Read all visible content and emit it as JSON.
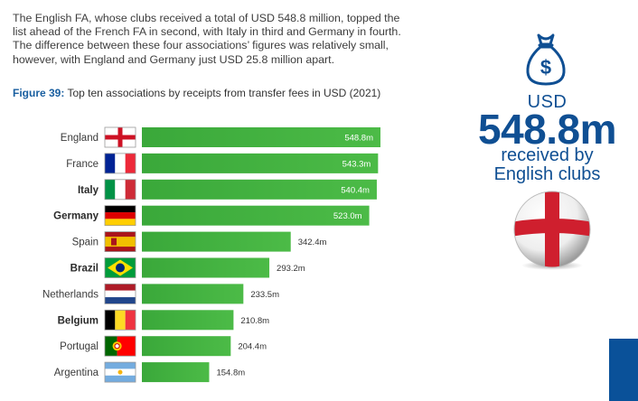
{
  "intro_text": "The English FA, whose clubs received a total of USD 548.8 million, topped the list ahead of the French FA in second, with Italy in third and Germany in fourth. The difference between these four associations’ figures was relatively small, however, with England and Germany just USD 25.8 million apart.",
  "figure": {
    "label": "Figure 39:",
    "caption": "Top ten associations by receipts from transfer fees in USD (2021)"
  },
  "stat": {
    "currency": "USD",
    "value": "548.8m",
    "line1": "received by",
    "line2": "English clubs"
  },
  "icons": {
    "money_bag": "money-bag-icon",
    "ball": "england-flag-ball"
  },
  "colors": {
    "bar": "#4cbb47",
    "bar_dark": "#3aa83a",
    "accent_blue": "#0f4f93"
  },
  "chart_data": {
    "type": "bar",
    "orientation": "horizontal",
    "title": "Top ten associations by receipts from transfer fees in USD (2021)",
    "categories": [
      "England",
      "France",
      "Italy",
      "Germany",
      "Spain",
      "Brazil",
      "Netherlands",
      "Belgium",
      "Portugal",
      "Argentina"
    ],
    "bold_categories": [
      "Italy",
      "Germany",
      "Brazil",
      "Belgium"
    ],
    "values": [
      548.8,
      543.3,
      540.4,
      523.0,
      342.4,
      293.2,
      233.5,
      210.8,
      204.4,
      154.8
    ],
    "value_labels": [
      "548.8m",
      "543.3m",
      "540.4m",
      "523.0m",
      "342.4m",
      "293.2m",
      "233.5m",
      "210.8m",
      "204.4m",
      "154.8m"
    ],
    "flags": [
      "england",
      "france",
      "italy",
      "germany",
      "spain",
      "brazil",
      "netherlands",
      "belgium",
      "portugal",
      "argentina"
    ],
    "unit": "USD million",
    "grid": false,
    "legend": "none"
  }
}
